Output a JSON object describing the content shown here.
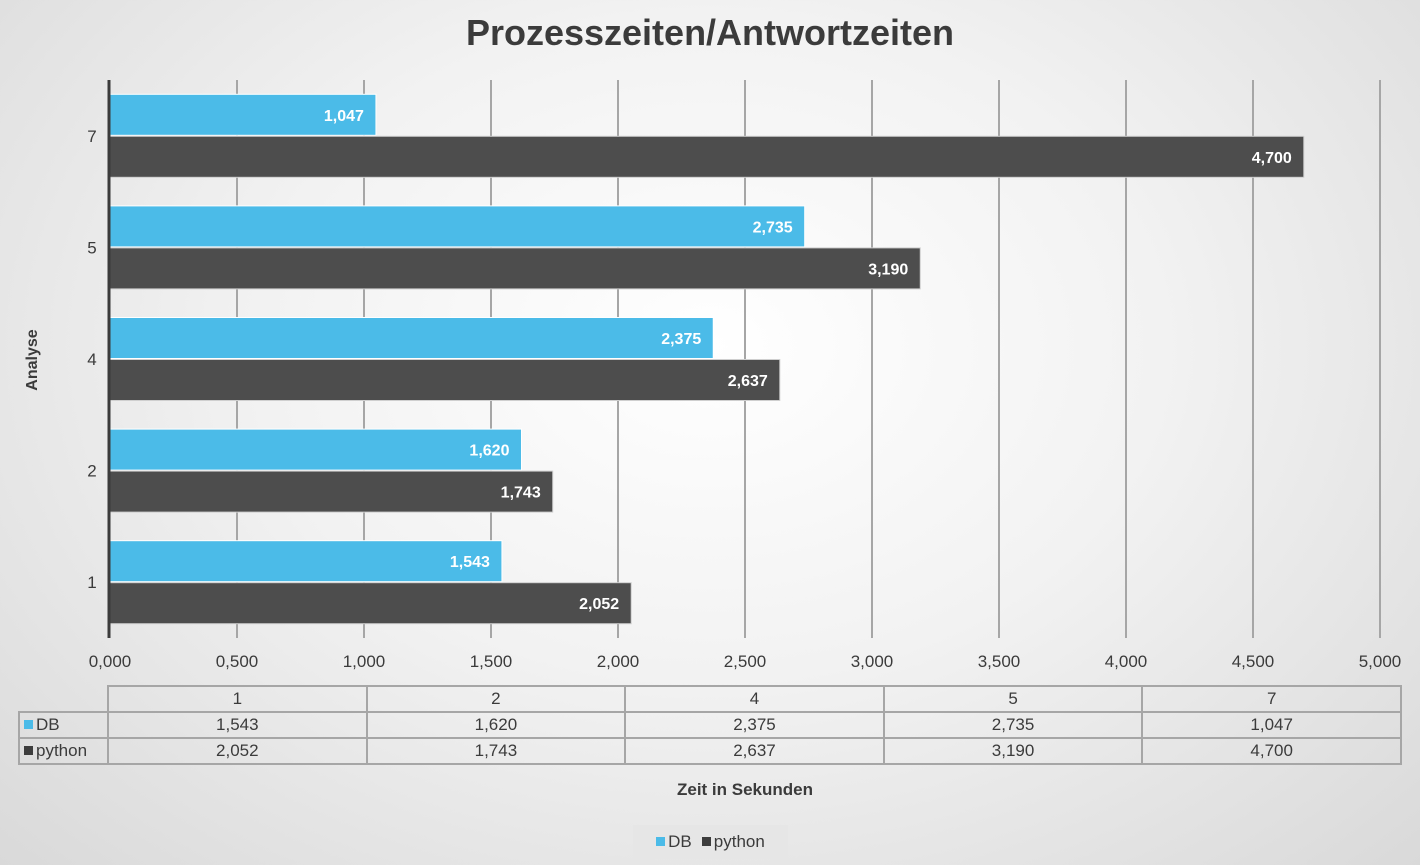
{
  "chart_data": {
    "type": "bar",
    "orientation": "horizontal",
    "title": "Prozesszeiten/Antwortzeiten",
    "ylabel": "Analyse",
    "xlabel": "Zeit in Sekunden",
    "categories": [
      "1",
      "2",
      "4",
      "5",
      "7"
    ],
    "series": [
      {
        "name": "DB",
        "color": "#4bbbe8",
        "values": [
          1.543,
          1.62,
          2.375,
          2.735,
          1.047
        ],
        "labels": [
          "1,543",
          "1,620",
          "2,375",
          "2,735",
          "1,047"
        ]
      },
      {
        "name": "python",
        "color": "#4d4d4d",
        "values": [
          2.052,
          1.743,
          2.637,
          3.19,
          4.7
        ],
        "labels": [
          "2,052",
          "1,743",
          "2,637",
          "3,190",
          "4,700"
        ]
      }
    ],
    "xlim": [
      0,
      5
    ],
    "xticks": [
      0,
      0.5,
      1,
      1.5,
      2,
      2.5,
      3,
      3.5,
      4,
      4.5,
      5
    ],
    "xtick_labels": [
      "0,000",
      "0,500",
      "1,000",
      "1,500",
      "2,000",
      "2,500",
      "3,000",
      "3,500",
      "4,000",
      "4,500",
      "5,000"
    ],
    "grid": true,
    "legend": "bottom",
    "data_table": true
  }
}
